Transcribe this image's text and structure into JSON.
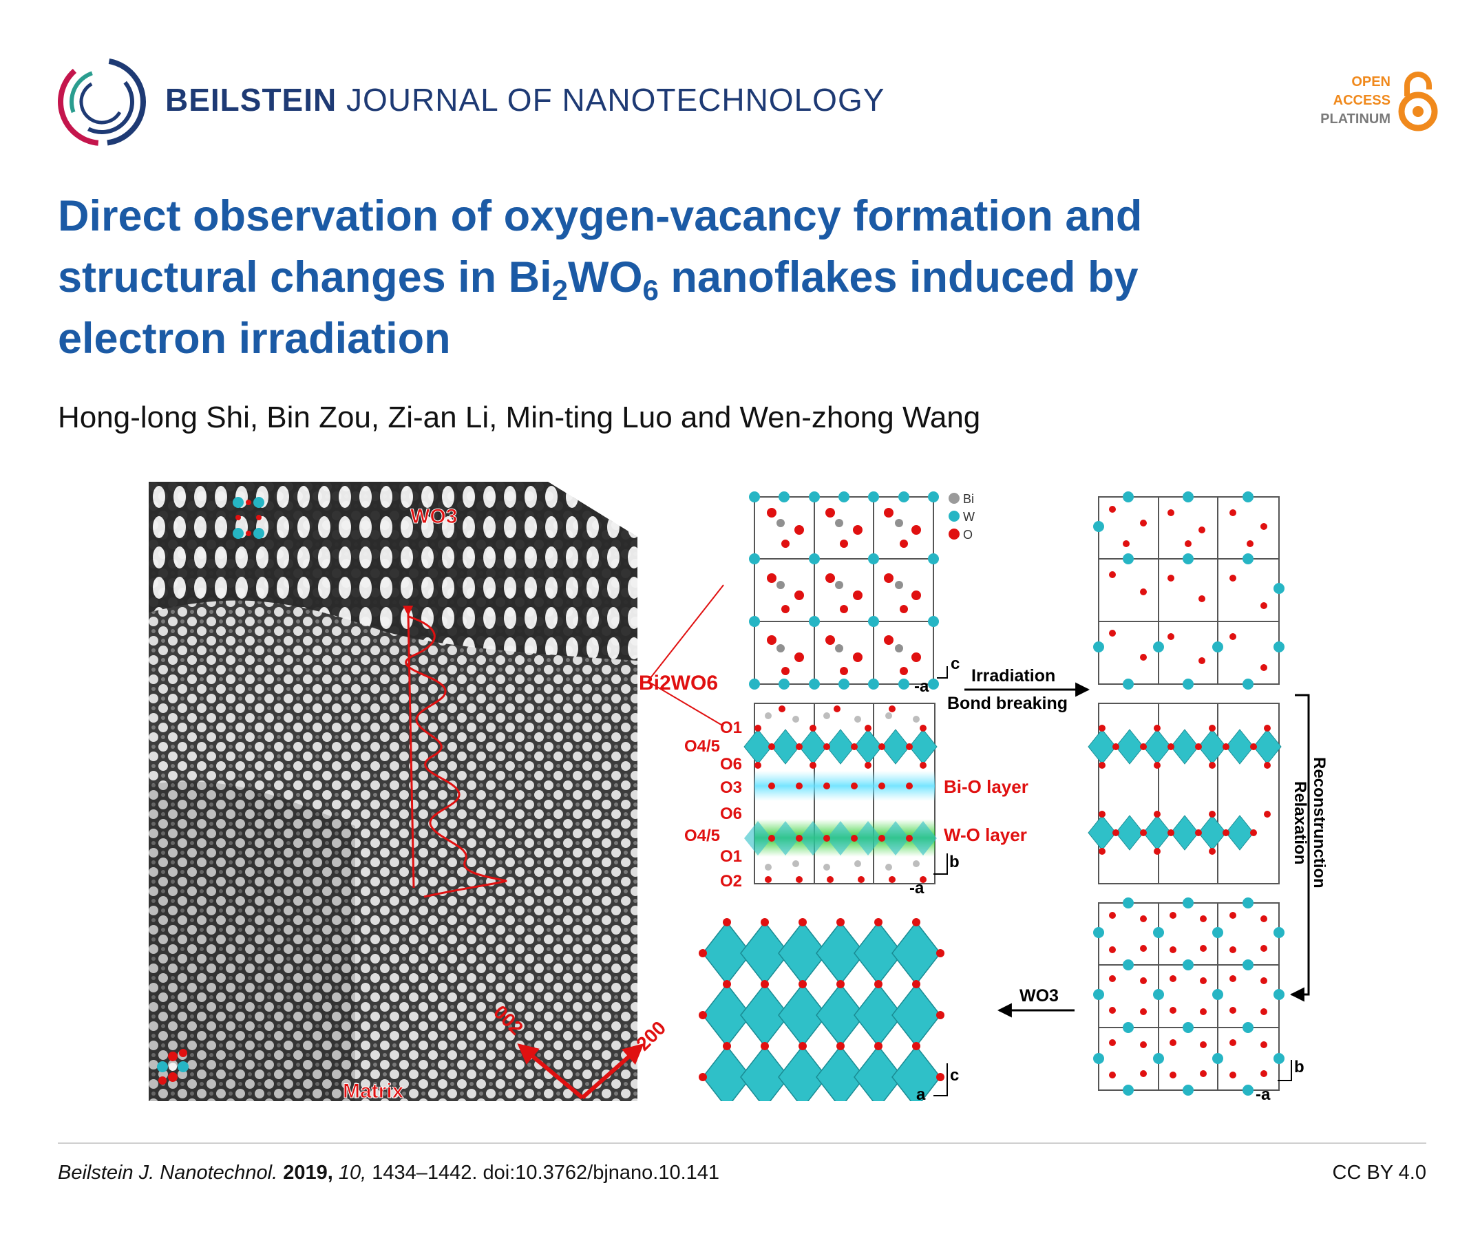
{
  "header": {
    "journal_bold": "BEILSTEIN",
    "journal_rest": " JOURNAL OF NANOTECHNOLOGY",
    "oa_line1": "OPEN",
    "oa_line2": "ACCESS",
    "oa_line3": "PLATINUM",
    "colors": {
      "brand_navy": "#1e3a74",
      "title_blue": "#1b5aa5",
      "oa_orange": "#f0891c",
      "oa_gray": "#7a7a7a"
    }
  },
  "article": {
    "title_part1": "Direct observation of oxygen-vacancy formation and structural changes in Bi",
    "title_sub1": "2",
    "title_part2": "WO",
    "title_sub2": "6",
    "title_part3": " nanoflakes induced by electron irradiation",
    "authors": "Hong-long Shi, Bin Zou, Zi-an Li, Min-ting Luo and Wen-zhong Wang"
  },
  "figure": {
    "tem": {
      "wo3_label": "WO3",
      "matrix_label": "Matrix",
      "dir1": "002",
      "dir2": "200",
      "bi2wo6_label": "Bi2WO6"
    },
    "legend": {
      "bi": "Bi",
      "w": "W",
      "o": "O"
    },
    "layer_labels": [
      "O1",
      "O4/5",
      "O6",
      "O3",
      "O6",
      "O4/5",
      "O1",
      "O2"
    ],
    "layer_names": {
      "bio": "Bi-O layer",
      "wo": "W-O layer"
    },
    "process": {
      "irradiation": "Irradiation",
      "bond_breaking": "Bond breaking",
      "reconstruction": "Reconstrunction",
      "relaxation": "Relaxation",
      "wo3": "WO3"
    },
    "axes": {
      "c": "c",
      "a": "a",
      "neg_a": "-a",
      "b": "b"
    }
  },
  "footer": {
    "journal_abbrev": "Beilstein J. Nanotechnol.",
    "year": "2019,",
    "volume": "10,",
    "pages_doi": "1434–1442. doi:10.3762/bjnano.10.141",
    "license": "CC BY 4.0"
  }
}
